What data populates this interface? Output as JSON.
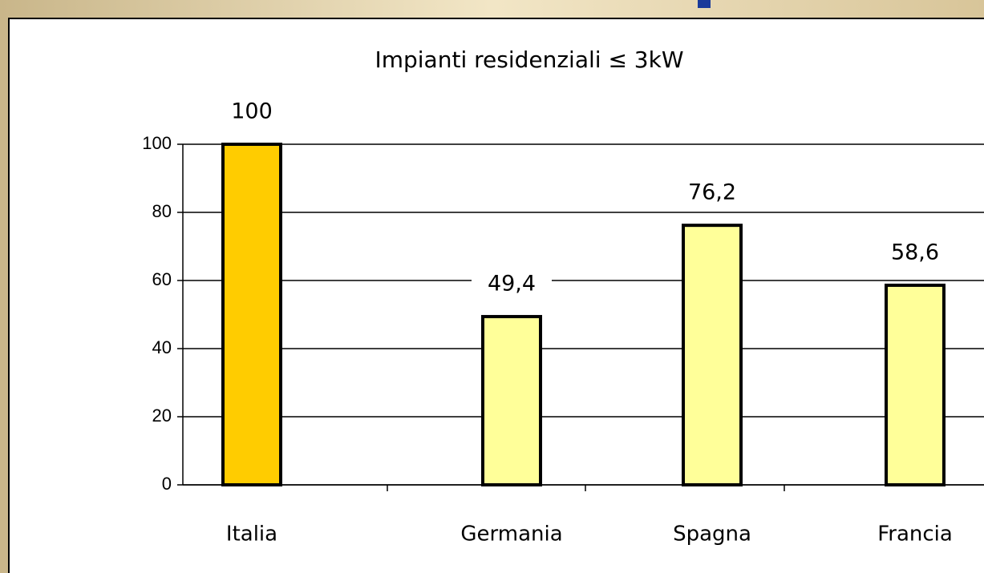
{
  "chart_data": {
    "type": "bar",
    "title": "Impianti residenziali ≤ 3kW",
    "categories": [
      "Italia",
      "Germania",
      "Spagna",
      "Francia"
    ],
    "values": [
      100,
      49.4,
      76.2,
      58.6
    ],
    "value_labels": [
      "100",
      "49,4",
      "76,2",
      "58,6"
    ],
    "colors": [
      "#ffcc00",
      "#ffff99",
      "#ffff99",
      "#ffff99"
    ],
    "ylim": [
      0,
      100
    ],
    "yticks": [
      0,
      20,
      40,
      60,
      80,
      100
    ],
    "grid": true
  }
}
